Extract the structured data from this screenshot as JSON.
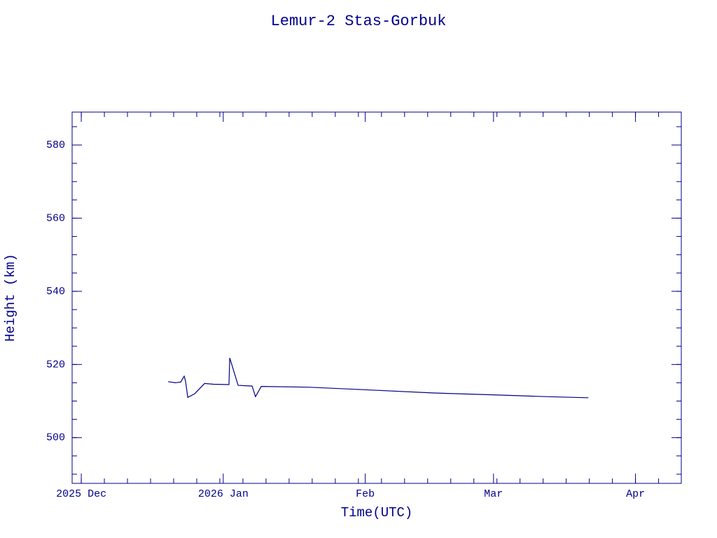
{
  "chart_data": {
    "type": "line",
    "title": "Lemur-2 Stas-Gorbuk",
    "x_label": "Time(UTC)",
    "y_label": "Height (km)",
    "x": [
      "2025-12-19T23:00",
      "2025-12-21T12:00",
      "2025-12-22T17:00",
      "2025-12-23T11:00",
      "2025-12-23T18:00",
      "2025-12-24T06:00",
      "2025-12-25T18:00",
      "2025-12-27T22:00",
      "2025-12-29T21:00",
      "2026-01-02T06:00",
      "2026-01-02T10:00",
      "2026-01-04T06:00",
      "2026-01-07T07:00",
      "2026-01-08T01:00",
      "2026-01-09T07:00",
      "2026-01-19T12:00",
      "2026-01-31T18:00",
      "2026-02-16T01:00",
      "2026-02-28T22:00",
      "2026-03-12T12:00",
      "2026-03-21T17:00"
    ],
    "series": [
      {
        "name": "Height",
        "color": "#00008b",
        "values": [
          515.3,
          515.0,
          515.2,
          516.8,
          515.5,
          511.0,
          512.0,
          514.8,
          514.6,
          514.5,
          521.8,
          514.3,
          514.1,
          511.2,
          514.0,
          513.8,
          513.1,
          512.2,
          511.7,
          511.2,
          510.9
        ]
      }
    ],
    "xlim": [
      "2025-11-29",
      "2026-04-11"
    ],
    "xticks": [
      {
        "value": "2025-12-01",
        "label": "2025 Dec"
      },
      {
        "value": "2026-01-01",
        "label": "2026 Jan"
      },
      {
        "value": "2026-02-01",
        "label": "Feb"
      },
      {
        "value": "2026-03-01",
        "label": "Mar"
      },
      {
        "value": "2026-04-01",
        "label": "Apr"
      }
    ],
    "ylim": [
      487.5,
      589
    ],
    "yticks": [
      500,
      520,
      540,
      560,
      580
    ],
    "grid": false
  }
}
